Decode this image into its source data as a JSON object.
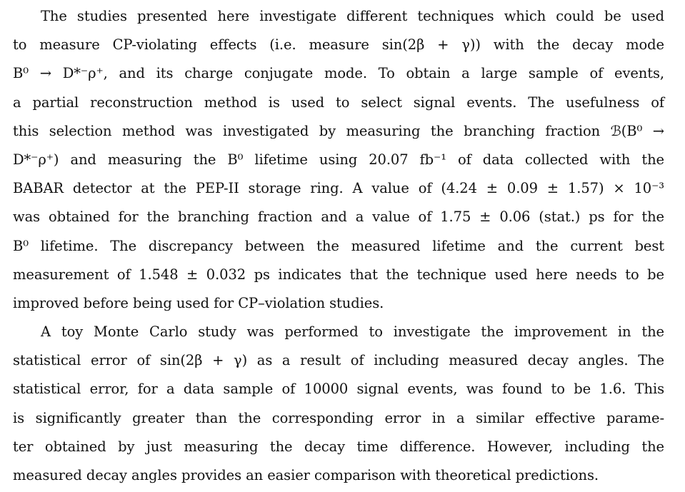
{
  "paragraphs": [
    {
      "lines": [
        "The studies presented here investigate different techniques which could be used",
        "to measure CP-violating effects (i.e. measure sin(2β + γ)) with the decay mode",
        "B⁰ → D*⁻ρ⁺, and its charge conjugate mode. To obtain a large sample of events,",
        "a partial reconstruction method is used to select signal events. The usefulness of",
        "this selection method was investigated by measuring the branching fraction ℬ(B⁰ →",
        "D*⁻ρ⁺) and measuring the B⁰ lifetime using 20.07 fb⁻¹ of data collected with the",
        "BABAR detector at the PEP-II storage ring. A value of (4.24 ± 0.09 ± 1.57) × 10⁻³",
        "was obtained for the branching fraction and a value of 1.75 ± 0.06 (stat.) ps for the",
        "B⁰ lifetime. The discrepancy between the measured lifetime and the current best",
        "measurement of 1.548 ± 0.032 ps indicates that the technique used here needs to be",
        "improved before being used for CP–violation studies."
      ]
    },
    {
      "lines": [
        "A toy Monte Carlo study was performed to investigate the improvement in the",
        "statistical error of sin(2β + γ) as a result of including measured decay angles. The",
        "statistical error, for a data sample of 10000 signal events, was found to be 1.6. This",
        "is significantly greater than the corresponding error in a similar effective parame-",
        "ter obtained by just measuring the decay time difference. However, including the",
        "measured decay angles provides an easier comparison with theoretical predictions."
      ]
    }
  ]
}
